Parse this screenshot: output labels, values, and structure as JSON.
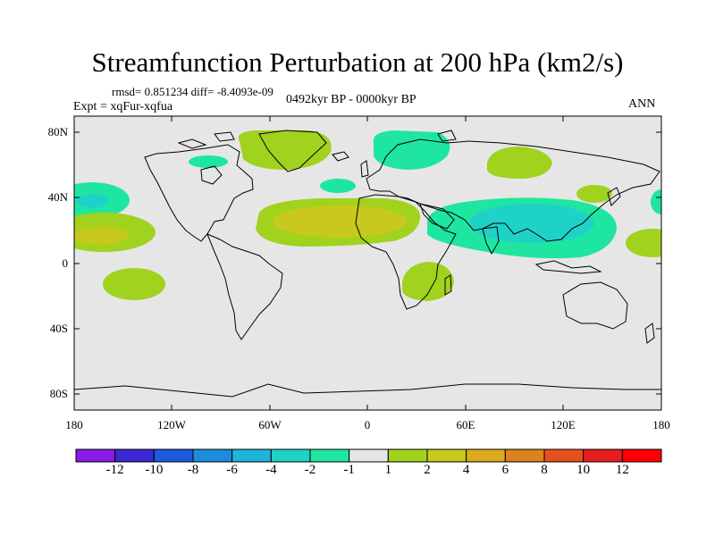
{
  "title": "Streamfunction Perturbation at 200 hPa (km2/s)",
  "stats_line": "rmsd= 0.851234 diff= -8.4093e-09",
  "experiment": "Expt = xqFur-xqfua",
  "period": "0492kyr BP - 0000kyr BP",
  "season": "ANN",
  "lat_ticks": [
    "80N",
    "40N",
    "0",
    "40S",
    "80S"
  ],
  "lon_ticks": [
    "180",
    "120W",
    "60W",
    "0",
    "60E",
    "120E",
    "180"
  ],
  "colorbar": {
    "labels": [
      "-12",
      "-10",
      "-8",
      "-6",
      "-4",
      "-2",
      "-1",
      "1",
      "2",
      "4",
      "6",
      "8",
      "10",
      "12"
    ],
    "colors": [
      "#8a1ae6",
      "#3c28d2",
      "#1e5adc",
      "#1e8cdc",
      "#1eb4dc",
      "#1ed2c8",
      "#1ee6a0",
      "#e6e6e6",
      "#a0d21e",
      "#c8c81e",
      "#dcaa1e",
      "#dc821e",
      "#e6501e",
      "#e61e1e",
      "#ff0000"
    ]
  },
  "chart_data": {
    "type": "contour-map",
    "title": "Streamfunction Perturbation at 200 hPa (km2/s)",
    "variable": "streamfunction perturbation",
    "level_hPa": 200,
    "units": "km2/s",
    "projection": "cylindrical equidistant",
    "lon_range": [
      -180,
      180
    ],
    "lat_range": [
      -90,
      90
    ],
    "contour_levels": [
      -12,
      -10,
      -8,
      -6,
      -4,
      -2,
      -1,
      1,
      2,
      4,
      6,
      8,
      10,
      12
    ],
    "features": [
      {
        "region": "Greenland / Arctic",
        "lon": -35,
        "lat": 75,
        "sign": "positive",
        "level": 2
      },
      {
        "region": "Barents / N Siberia",
        "lon": 25,
        "lat": 75,
        "sign": "negative",
        "level": -1
      },
      {
        "region": "Central Siberia",
        "lon": 75,
        "lat": 60,
        "sign": "positive",
        "level": 2
      },
      {
        "region": "Hudson Bay",
        "lon": -85,
        "lat": 60,
        "sign": "negative",
        "level": -1
      },
      {
        "region": "North Atlantic",
        "lon": -20,
        "lat": 45,
        "sign": "negative",
        "level": -1
      },
      {
        "region": "NE Pacific",
        "lon": -170,
        "lat": 37,
        "sign": "negative",
        "level": -2
      },
      {
        "region": "Tropical central Pacific",
        "lon": -165,
        "lat": 12,
        "sign": "positive",
        "level": 4
      },
      {
        "region": "Tropical Atlantic / N Africa",
        "lon": -5,
        "lat": 20,
        "sign": "positive",
        "level": 4
      },
      {
        "region": "South Asia / Indian Ocean",
        "lon": 95,
        "lat": 20,
        "sign": "negative",
        "level": -4
      },
      {
        "region": "East Asia / Japan",
        "lon": 145,
        "lat": 40,
        "sign": "positive",
        "level": 2
      },
      {
        "region": "Southern Africa",
        "lon": 35,
        "lat": -15,
        "sign": "positive",
        "level": 2
      },
      {
        "region": "South Pacific",
        "lon": -160,
        "lat": -10,
        "sign": "positive",
        "level": 2
      },
      {
        "region": "W Pacific",
        "lon": 180,
        "lat": 10,
        "sign": "positive",
        "level": 2
      }
    ]
  }
}
